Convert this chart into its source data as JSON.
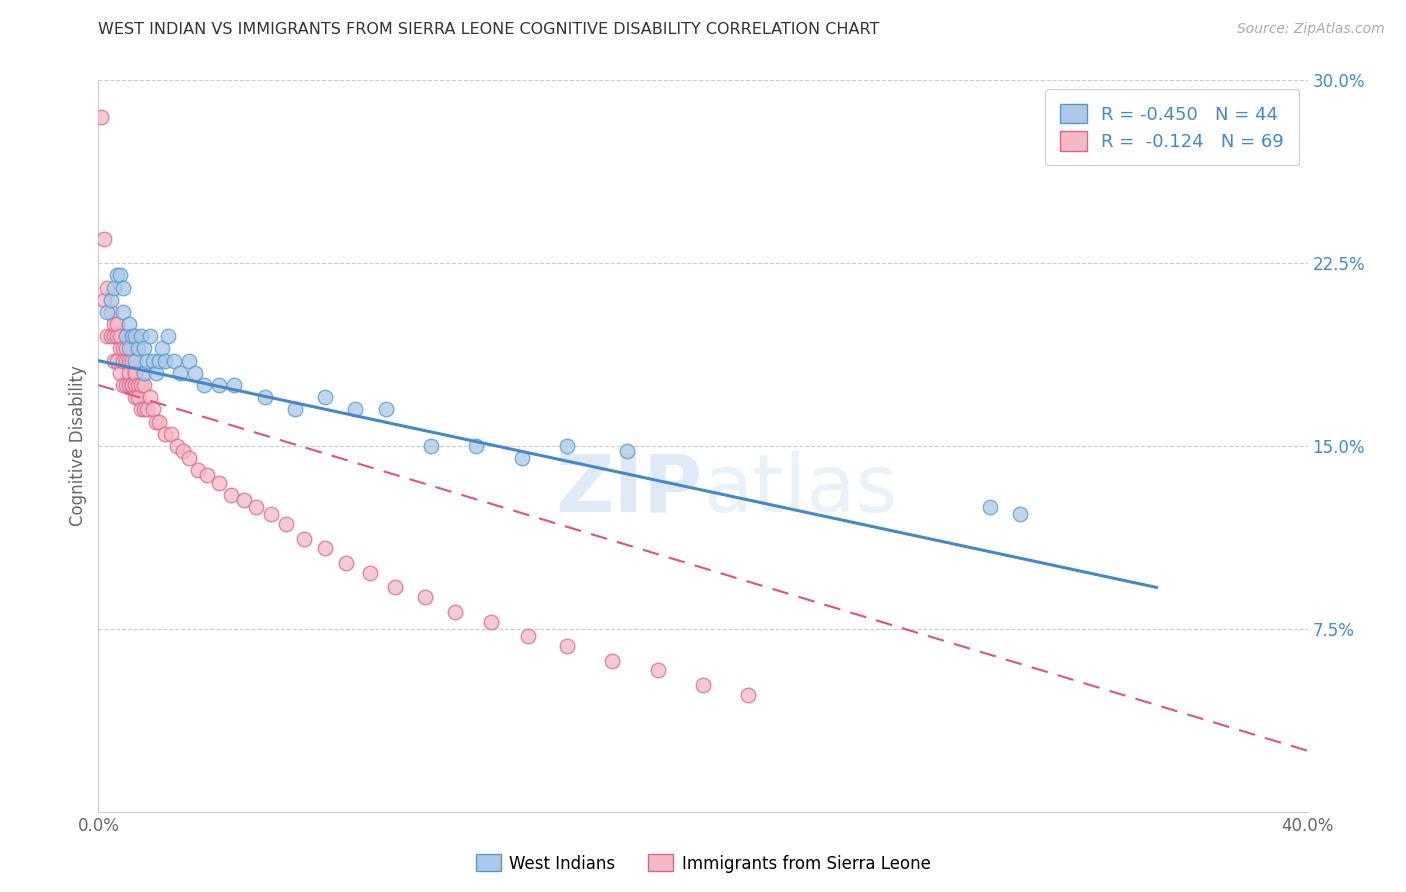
{
  "title": "WEST INDIAN VS IMMIGRANTS FROM SIERRA LEONE COGNITIVE DISABILITY CORRELATION CHART",
  "source": "Source: ZipAtlas.com",
  "ylabel": "Cognitive Disability",
  "xlim": [
    0.0,
    0.4
  ],
  "ylim": [
    0.0,
    0.3
  ],
  "xticks": [
    0.0,
    0.05,
    0.1,
    0.15,
    0.2,
    0.25,
    0.3,
    0.35,
    0.4
  ],
  "yticks_right": [
    0.075,
    0.15,
    0.225,
    0.3
  ],
  "ytick_labels_right": [
    "7.5%",
    "15.0%",
    "22.5%",
    "30.0%"
  ],
  "blue_r": "-0.450",
  "blue_n": "44",
  "pink_r": "-0.124",
  "pink_n": "69",
  "blue_color": "#aac8e8",
  "pink_color": "#f5b8c4",
  "blue_edge_color": "#5599cc",
  "pink_edge_color": "#dd6688",
  "blue_line_color": "#4488cc",
  "pink_line_color": "#dd5577",
  "watermark_zip": "ZIP",
  "watermark_atlas": "atlas",
  "legend_label_blue": "West Indians",
  "legend_label_pink": "Immigrants from Sierra Leone",
  "blue_line_x0": 0.0,
  "blue_line_y0": 0.185,
  "blue_line_x1": 0.35,
  "blue_line_y1": 0.092,
  "pink_line_x0": 0.0,
  "pink_line_y0": 0.175,
  "pink_line_x1": 0.4,
  "pink_line_y1": 0.025,
  "west_indians_x": [
    0.003,
    0.004,
    0.005,
    0.006,
    0.007,
    0.008,
    0.008,
    0.009,
    0.01,
    0.01,
    0.011,
    0.012,
    0.012,
    0.013,
    0.014,
    0.015,
    0.015,
    0.016,
    0.017,
    0.018,
    0.019,
    0.02,
    0.021,
    0.022,
    0.023,
    0.025,
    0.027,
    0.03,
    0.032,
    0.035,
    0.04,
    0.045,
    0.055,
    0.065,
    0.075,
    0.085,
    0.095,
    0.11,
    0.125,
    0.14,
    0.155,
    0.175,
    0.295,
    0.305
  ],
  "west_indians_y": [
    0.205,
    0.21,
    0.215,
    0.22,
    0.22,
    0.215,
    0.205,
    0.195,
    0.19,
    0.2,
    0.195,
    0.195,
    0.185,
    0.19,
    0.195,
    0.19,
    0.18,
    0.185,
    0.195,
    0.185,
    0.18,
    0.185,
    0.19,
    0.185,
    0.195,
    0.185,
    0.18,
    0.185,
    0.18,
    0.175,
    0.175,
    0.175,
    0.17,
    0.165,
    0.17,
    0.165,
    0.165,
    0.15,
    0.15,
    0.145,
    0.15,
    0.148,
    0.125,
    0.122
  ],
  "sierra_leone_x": [
    0.001,
    0.002,
    0.002,
    0.003,
    0.003,
    0.004,
    0.004,
    0.005,
    0.005,
    0.005,
    0.006,
    0.006,
    0.006,
    0.007,
    0.007,
    0.007,
    0.008,
    0.008,
    0.008,
    0.009,
    0.009,
    0.009,
    0.01,
    0.01,
    0.01,
    0.011,
    0.011,
    0.011,
    0.012,
    0.012,
    0.012,
    0.013,
    0.013,
    0.014,
    0.014,
    0.015,
    0.015,
    0.016,
    0.017,
    0.018,
    0.019,
    0.02,
    0.022,
    0.024,
    0.026,
    0.028,
    0.03,
    0.033,
    0.036,
    0.04,
    0.044,
    0.048,
    0.052,
    0.057,
    0.062,
    0.068,
    0.075,
    0.082,
    0.09,
    0.098,
    0.108,
    0.118,
    0.13,
    0.142,
    0.155,
    0.17,
    0.185,
    0.2,
    0.215
  ],
  "sierra_leone_y": [
    0.285,
    0.21,
    0.235,
    0.215,
    0.195,
    0.205,
    0.195,
    0.195,
    0.185,
    0.2,
    0.195,
    0.185,
    0.2,
    0.19,
    0.18,
    0.195,
    0.19,
    0.175,
    0.185,
    0.185,
    0.175,
    0.19,
    0.18,
    0.185,
    0.175,
    0.175,
    0.185,
    0.175,
    0.175,
    0.18,
    0.17,
    0.175,
    0.17,
    0.175,
    0.165,
    0.175,
    0.165,
    0.165,
    0.17,
    0.165,
    0.16,
    0.16,
    0.155,
    0.155,
    0.15,
    0.148,
    0.145,
    0.14,
    0.138,
    0.135,
    0.13,
    0.128,
    0.125,
    0.122,
    0.118,
    0.112,
    0.108,
    0.102,
    0.098,
    0.092,
    0.088,
    0.082,
    0.078,
    0.072,
    0.068,
    0.062,
    0.058,
    0.052,
    0.048
  ]
}
